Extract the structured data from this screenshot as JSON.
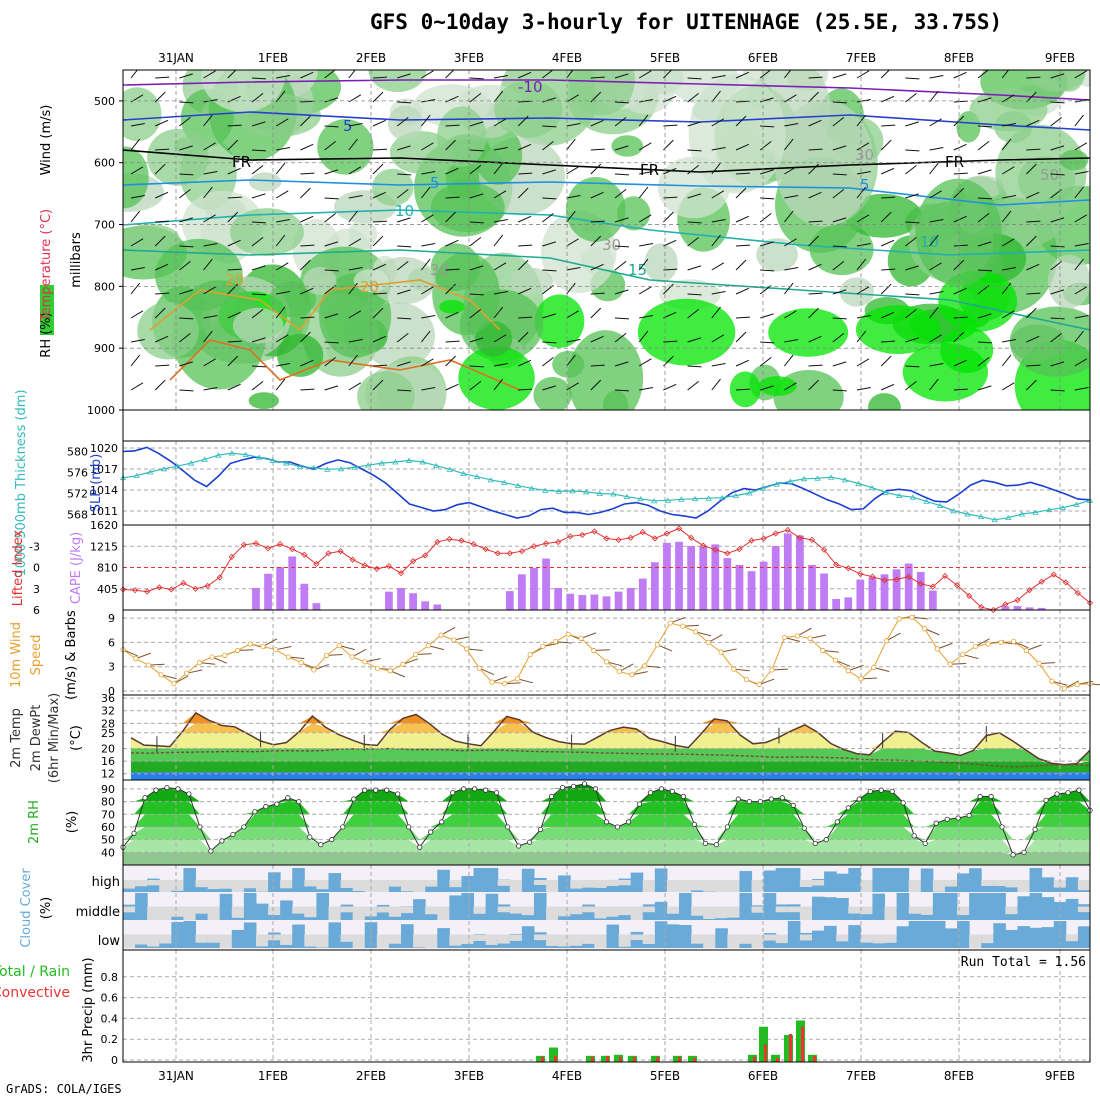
{
  "title": "GFS 0~10day 3-hourly for UITENHAGE (25.5E, 33.75S)",
  "credit": "GrADS: COLA/IGES",
  "date_labels": [
    "31JAN",
    "1FEB",
    "2FEB",
    "3FEB",
    "4FEB",
    "5FEB",
    "6FEB",
    "7FEB",
    "8FEB",
    "9FEB"
  ],
  "colors": {
    "rh_green": "#33cc33",
    "rh_bright": "#00ee00",
    "rh_light": "#cfe3cf",
    "slp": "#1b3fd1",
    "thickness": "#33bbbb",
    "cape": "#c07cf4",
    "lifted": "#e03030",
    "wind10": "#e8a030",
    "temp_fill": "#f0a020",
    "dew_green": "#22aa22",
    "cloud": "#6aaad8",
    "precip_total": "#22bb22",
    "precip_conv": "#ee3333"
  },
  "chart_data": [
    {
      "type": "heatmap",
      "panel": "upper_air",
      "ylabel": [
        "RH (%)",
        "Temperature (°C)",
        "Wind (m/s)"
      ],
      "yunit": "millibars",
      "yticks": [
        500,
        600,
        700,
        800,
        900,
        1000
      ],
      "ylim": [
        1000,
        450
      ],
      "contour_labels": [
        "-10",
        "5",
        "FR",
        "FR",
        "FR",
        "5",
        "5",
        "10",
        "10",
        "15",
        "20",
        "20",
        "30",
        "30",
        "30",
        "50"
      ]
    },
    {
      "type": "line",
      "panel": "slp_thickness",
      "ylabel_left": "1000-500mb Thickness (dm)",
      "ylabel_right": "SLP (mb)",
      "yticks_left": [
        568,
        572,
        576,
        580
      ],
      "yticks_right": [
        1011,
        1014,
        1017,
        1020
      ],
      "series": [
        {
          "name": "SLP (mb)",
          "axis": "right",
          "values": [
            1019.5,
            1019.6,
            1020.1,
            1019.2,
            1018.1,
            1016.8,
            1015.4,
            1014.5,
            1016.0,
            1017.8,
            1018.3,
            1018.7,
            1018.5,
            1018.0,
            1018.0,
            1017.4,
            1017.0,
            1017.8,
            1018.3,
            1017.9,
            1017.0,
            1016.1,
            1015.0,
            1013.5,
            1012.0,
            1011.5,
            1011.0,
            1011.2,
            1011.9,
            1012.2,
            1011.6,
            1011.0,
            1010.5,
            1010.0,
            1010.3,
            1011.2,
            1011.4,
            1010.8,
            1010.8,
            1010.5,
            1010.8,
            1011.3,
            1012.0,
            1012.2,
            1011.8,
            1011.0,
            1010.5,
            1010.3,
            1010.0,
            1011.0,
            1012.4,
            1013.6,
            1014.2,
            1014.0,
            1014.5,
            1015.0,
            1014.9,
            1014.2,
            1013.4,
            1012.6,
            1012.0,
            1011.2,
            1011.3,
            1012.8,
            1013.9,
            1014.1,
            1013.9,
            1013.1,
            1012.4,
            1012.3,
            1013.4,
            1014.7,
            1015.4,
            1015.1,
            1014.6,
            1014.7,
            1015.1,
            1014.6,
            1014.0,
            1013.4,
            1012.7,
            1012.6
          ]
        },
        {
          "name": "1000-500mb Thickness (dm)",
          "axis": "left",
          "values": [
            575.0,
            575.4,
            576.1,
            576.7,
            577.2,
            577.8,
            578.5,
            579.3,
            579.7,
            579.4,
            578.9,
            578.3,
            577.8,
            577.1,
            576.9,
            576.6,
            576.7,
            577.0,
            577.4,
            577.8,
            578.0,
            578.3,
            578.0,
            577.3,
            576.6,
            575.8,
            575.2,
            574.6,
            574.1,
            573.5,
            573.0,
            572.6,
            572.4,
            572.5,
            572.3,
            572.0,
            571.9,
            571.4,
            571.0,
            570.6,
            570.7,
            570.9,
            571.0,
            571.1,
            571.2,
            571.6,
            572.1,
            573.0,
            573.8,
            574.3,
            574.8,
            574.9,
            575.1,
            574.6,
            573.9,
            573.1,
            572.2,
            571.6,
            571.3,
            570.5,
            569.7,
            568.7,
            568.1,
            567.6,
            567.0,
            567.4,
            568.1,
            568.4,
            568.9,
            569.3,
            569.9,
            570.7
          ]
        }
      ]
    },
    {
      "type": "bar",
      "panel": "cape_lifted",
      "ylabel_left": "Lifted Index",
      "ylabel_right": "CAPE (J/kg)",
      "yticks_left": [
        -3,
        0,
        3,
        6
      ],
      "yticks_right": [
        405,
        810,
        1215,
        1620
      ],
      "series": [
        {
          "name": "CAPE (J/kg)",
          "values": [
            0,
            0,
            0,
            0,
            0,
            0,
            0,
            0,
            0,
            0,
            0,
            420,
            690,
            815,
            1020,
            500,
            130,
            0,
            0,
            0,
            0,
            0,
            350,
            420,
            320,
            165,
            105,
            0,
            0,
            0,
            0,
            0,
            360,
            680,
            800,
            980,
            420,
            310,
            285,
            295,
            260,
            350,
            420,
            600,
            910,
            1280,
            1300,
            1220,
            1210,
            1250,
            990,
            860,
            740,
            920,
            1220,
            1460,
            1420,
            860,
            695,
            210,
            240,
            580,
            620,
            680,
            775,
            885,
            725,
            370,
            0,
            0,
            0,
            0,
            0,
            70,
            75,
            50,
            40,
            0,
            0,
            0,
            0
          ]
        },
        {
          "name": "Lifted Index",
          "values": [
            3.1,
            3.2,
            3.4,
            2.8,
            3.1,
            2.2,
            3.0,
            2.6,
            1.4,
            -1.5,
            -3.2,
            -3.4,
            -2.7,
            -3.3,
            -2.6,
            -1.8,
            -0.5,
            -2.0,
            -2.3,
            -1.1,
            -0.3,
            0.2,
            -0.2,
            0.8,
            -0.9,
            -1.7,
            -3.6,
            -4.0,
            -3.8,
            -3.3,
            -2.6,
            -2.0,
            -2.0,
            -2.3,
            -3.0,
            -3.4,
            -3.6,
            -4.4,
            -4.6,
            -5.1,
            -4.1,
            -3.9,
            -4.2,
            -5.0,
            -4.1,
            -4.8,
            -5.5,
            -4.2,
            -3.1,
            -2.5,
            -2.0,
            -2.6,
            -3.8,
            -4.1,
            -4.8,
            -5.3,
            -4.2,
            -3.9,
            -2.5,
            -0.4,
            0.1,
            0.9,
            1.3,
            1.8,
            1.7,
            1.3,
            2.3,
            2.7,
            1.2,
            2.5,
            4.0,
            5.6,
            6.0,
            5.2,
            4.6,
            3.2,
            2.0,
            1.0,
            2.1,
            3.6,
            5.0
          ]
        }
      ]
    },
    {
      "type": "line",
      "panel": "wind10m",
      "ylabel": "10m Wind Speed (m/s) & Barbs",
      "yticks": [
        0,
        3,
        6,
        9
      ],
      "series": [
        {
          "name": "10m Wind Speed (m/s)",
          "values": [
            5.1,
            4.0,
            3.2,
            2.0,
            0.9,
            2.2,
            3.5,
            4.2,
            4.4,
            5.0,
            5.8,
            5.5,
            5.1,
            4.2,
            3.5,
            2.6,
            4.4,
            5.6,
            4.2,
            3.6,
            2.8,
            2.5,
            3.3,
            4.5,
            5.6,
            6.9,
            6.3,
            5.2,
            2.8,
            1.1,
            0.9,
            1.5,
            4.5,
            5.5,
            6.1,
            7.0,
            6.5,
            5.0,
            3.6,
            2.4,
            2.0,
            3.1,
            5.7,
            8.4,
            8.0,
            7.3,
            6.0,
            4.8,
            2.7,
            1.4,
            0.8,
            2.6,
            6.6,
            6.8,
            6.5,
            5.0,
            3.8,
            2.5,
            1.5,
            2.9,
            6.2,
            8.9,
            9.1,
            7.7,
            5.2,
            3.3,
            4.5,
            5.5,
            5.8,
            6.0,
            6.1,
            5.0,
            3.4,
            1.2,
            0.3,
            0.8,
            0.9
          ]
        }
      ]
    },
    {
      "type": "area",
      "panel": "temperature",
      "ylabel": "2m Temp 2m DewPt (6hr Min/Max) (°C)",
      "yticks": [
        12,
        16,
        20,
        25,
        28,
        32,
        36
      ],
      "series": [
        {
          "name": "2m Temp",
          "values": [
            23.4,
            21.1,
            20.9,
            20.6,
            25.5,
            31.3,
            29.0,
            27.3,
            26.9,
            24.7,
            22.4,
            21.2,
            21.9,
            25.4,
            30.3,
            26.8,
            24.5,
            22.8,
            21.3,
            21.0,
            26.1,
            29.6,
            30.8,
            28.0,
            24.6,
            22.4,
            21.5,
            20.9,
            25.4,
            30.2,
            29.1,
            25.2,
            23.5,
            22.2,
            21.5,
            21.4,
            23.6,
            25.8,
            26.8,
            26.2,
            23.2,
            22.2,
            21.0,
            20.3,
            24.7,
            29.4,
            28.8,
            24.3,
            21.5,
            21.9,
            23.6,
            25.7,
            27.5,
            25.1,
            21.6,
            19.7,
            18.4,
            18.0,
            22.0,
            25.5,
            25.1,
            22.0,
            19.2,
            18.6,
            17.8,
            19.4,
            24.1,
            25.0,
            22.5,
            19.7,
            16.9,
            15.3,
            14.9,
            15.2,
            19.5
          ]
        },
        {
          "name": "2m DewPt",
          "values": [
            18.6,
            18.5,
            18.7,
            18.8,
            18.9,
            19.0,
            19.1,
            19.0,
            19.2,
            19.3,
            19.2,
            19.3,
            19.8,
            19.9,
            19.9,
            20.0,
            19.7,
            19.7,
            19.6,
            19.3,
            19.4,
            19.5,
            19.3,
            19.1,
            19.0,
            18.9,
            18.8,
            18.6,
            18.5,
            18.4,
            18.3,
            18.2,
            18.2,
            18.0,
            17.9,
            17.7,
            17.5,
            17.2,
            17.3,
            17.3,
            17.1,
            17.0,
            16.5,
            16.4,
            16.3,
            16.0,
            15.8,
            15.5,
            15.2,
            14.7,
            14.3,
            14.2,
            14.5,
            14.8,
            14.9,
            14.5
          ]
        }
      ]
    },
    {
      "type": "area",
      "panel": "rh2m",
      "ylabel": "2m RH (%)",
      "yticks": [
        40,
        50,
        60,
        70,
        80,
        90
      ],
      "series": [
        {
          "name": "2m RH",
          "values": [
            44,
            55,
            83,
            89,
            91,
            90,
            86,
            60,
            41,
            49,
            54,
            60,
            72,
            76,
            78,
            83,
            80,
            52,
            46,
            50,
            60,
            82,
            89,
            89,
            89,
            86,
            60,
            44,
            56,
            64,
            87,
            90,
            90,
            89,
            87,
            60,
            45,
            48,
            58,
            84,
            91,
            92,
            94,
            90,
            64,
            60,
            64,
            78,
            87,
            90,
            88,
            84,
            62,
            47,
            46,
            60,
            82,
            80,
            80,
            82,
            83,
            77,
            59,
            47,
            50,
            64,
            75,
            82,
            88,
            89,
            88,
            79,
            53,
            47,
            63,
            66,
            67,
            69,
            84,
            84,
            60,
            38,
            40,
            58,
            81,
            86,
            87,
            89,
            73
          ]
        }
      ]
    },
    {
      "type": "heatmap",
      "panel": "cloud_cover",
      "ylabel": "Cloud Cover (%)",
      "levels": [
        "high",
        "middle",
        "low"
      ]
    },
    {
      "type": "bar",
      "panel": "precip",
      "ylabel": "3hr Precip (mm)",
      "legend": [
        "Total / Rain",
        "Convective"
      ],
      "yticks": [
        0,
        0.2,
        0.4,
        0.6,
        0.8
      ],
      "run_total_label": "Run Total = 1.56",
      "series": [
        {
          "name": "Total",
          "values": [
            0.04,
            0.12,
            0.04,
            0.04,
            0.05,
            0.04,
            0.04,
            0.04,
            0.04,
            0.05,
            0.32,
            0.05,
            0.24,
            0.38,
            0.05
          ]
        },
        {
          "name": "Convective",
          "values": [
            0.03,
            0.04,
            0.03,
            0.04,
            0.03,
            0.03,
            0.03,
            0.03,
            0.02,
            0.03,
            0.15,
            0.02,
            0.25,
            0.32,
            0.04
          ]
        }
      ]
    }
  ]
}
